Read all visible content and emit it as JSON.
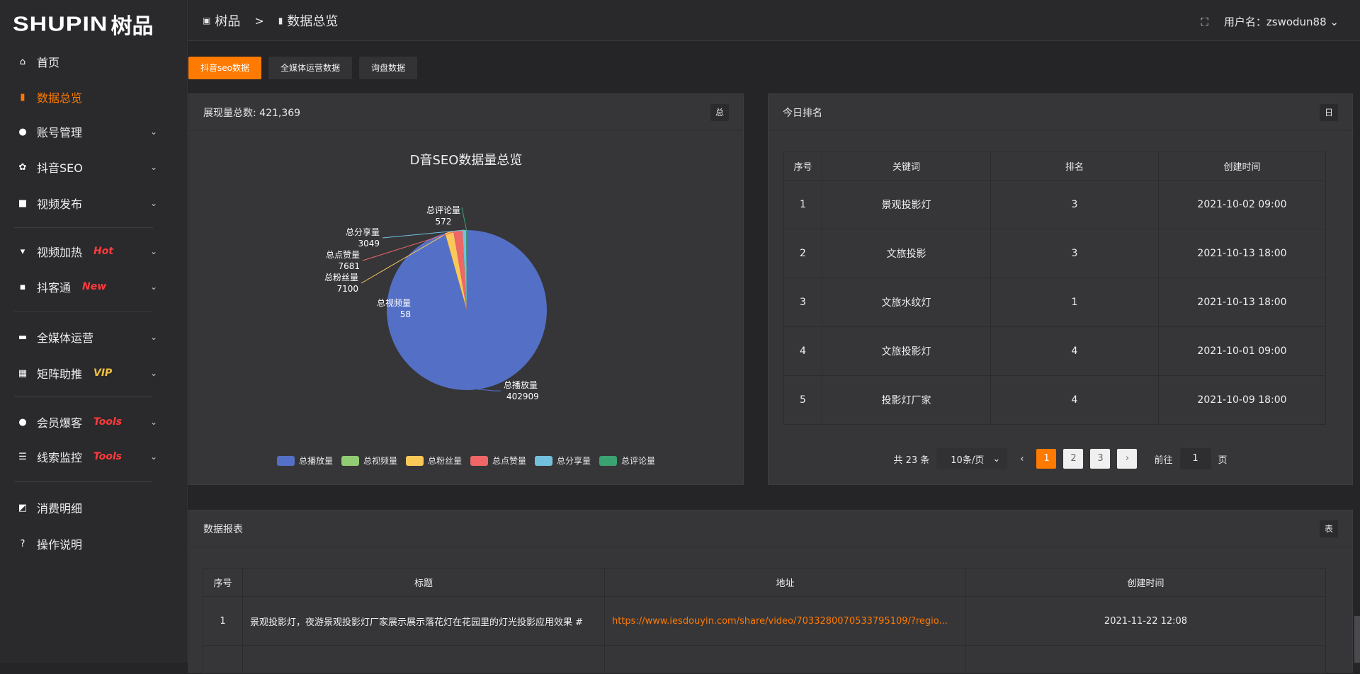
{
  "brand": {
    "logo_en": "SHUPIN",
    "logo_cn": "树品"
  },
  "sidebar": {
    "items": [
      {
        "label": "首页",
        "icon": "home-icon"
      },
      {
        "label": "数据总览",
        "icon": "bar-chart-icon",
        "active": true
      },
      {
        "label": "账号管理",
        "icon": "user-icon",
        "chev": true
      },
      {
        "label": "抖音SEO",
        "icon": "gear-icon",
        "chev": true
      },
      {
        "label": "视频发布",
        "icon": "camera-icon",
        "chev": true
      },
      {
        "label": "视频加热",
        "icon": "flag-icon",
        "badge": "Hot",
        "badge_color": "#ff3b3b",
        "chev": true
      },
      {
        "label": "抖客通",
        "icon": "message-icon",
        "badge": "New",
        "badge_color": "#ff3b3b",
        "chev": true
      },
      {
        "label": "全媒体运营",
        "icon": "monitor-icon",
        "chev": true
      },
      {
        "label": "矩阵助推",
        "icon": "grid-icon",
        "badge": "VIP",
        "badge_color": "#f0c040",
        "chev": true
      },
      {
        "label": "会员爆客",
        "icon": "user-icon",
        "badge": "Tools",
        "badge_color": "#ff3b3b",
        "chev": true
      },
      {
        "label": "线索监控",
        "icon": "sliders-icon",
        "badge": "Tools",
        "badge_color": "#ff3b3b",
        "chev": true
      },
      {
        "label": "消费明细",
        "icon": "wallet-icon"
      },
      {
        "label": "操作说明",
        "icon": "help-icon"
      }
    ]
  },
  "header": {
    "breadcrumb": [
      "树品",
      "数据总览"
    ],
    "user_label": "用户名：zswodun88"
  },
  "tabs": [
    "抖音seo数据",
    "全媒体运营数据",
    "询盘数据"
  ],
  "pie_card": {
    "title": "展现量总数: 421,369",
    "btn": "总"
  },
  "chart_data": {
    "type": "pie",
    "title": "D音SEO数据量总览",
    "labels": [
      "总播放量",
      "总视频量",
      "总粉丝量",
      "总点赞量",
      "总分享量",
      "总评论量"
    ],
    "values": [
      402909,
      58,
      7100,
      7681,
      3049,
      572
    ],
    "colors": [
      "#5470c6",
      "#91cc75",
      "#fac858",
      "#ee6666",
      "#73c0de",
      "#3ba272"
    ],
    "legend": "bottom"
  },
  "rank_card": {
    "title": "今日排名",
    "btn": "日",
    "columns": [
      "序号",
      "关键词",
      "排名",
      "创建时间"
    ],
    "rows": [
      [
        "1",
        "景观投影灯",
        "3",
        "2021-10-02 09:00"
      ],
      [
        "2",
        "文旅投影",
        "3",
        "2021-10-13 18:00"
      ],
      [
        "3",
        "文旅水纹灯",
        "1",
        "2021-10-13 18:00"
      ],
      [
        "4",
        "文旅投影灯",
        "4",
        "2021-10-01 09:00"
      ],
      [
        "5",
        "投影灯厂家",
        "4",
        "2021-10-09 18:00"
      ]
    ],
    "pager": {
      "total": "共 23 条",
      "size": "10条/页",
      "pages": [
        "1",
        "2",
        "3"
      ],
      "current": 1,
      "goto": "前往",
      "goto_val": "1",
      "page_unit": "页"
    }
  },
  "report_card": {
    "title": "数据报表",
    "btn": "表",
    "columns": [
      "序号",
      "标题",
      "地址",
      "创建时间"
    ],
    "rows": [
      [
        "1",
        "景观投影灯，夜游景观投影灯厂家展示展示落花灯在花园里的灯光投影应用效果 #",
        "https://www.iesdouyin.com/share/video/7033280070533795109/?regio...",
        "2021-11-22 12:08"
      ]
    ]
  },
  "accent": "#ff7a00"
}
